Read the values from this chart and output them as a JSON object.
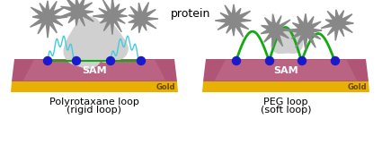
{
  "title": "protein",
  "left_label_line1": "Polyrotaxane loop",
  "left_label_line2": "(rigid loop)",
  "right_label_line1": "PEG loop",
  "right_label_line2": "(soft loop)",
  "sam_label": "SAM",
  "gold_label": "Gold",
  "sam_color": "#b05575",
  "sam_highlight": "#cc7090",
  "gold_color": "#e8b000",
  "bg_color": "#ffffff",
  "blue_dot_color": "#1a1acc",
  "green_line_color": "#11aa11",
  "cyan_coil_color": "#44ccdd",
  "protein_color": "#888888",
  "arrow_color": "#d0d0d0",
  "title_fontsize": 9,
  "label_fontsize": 8,
  "sam_fontsize": 8,
  "gold_fontsize": 6
}
